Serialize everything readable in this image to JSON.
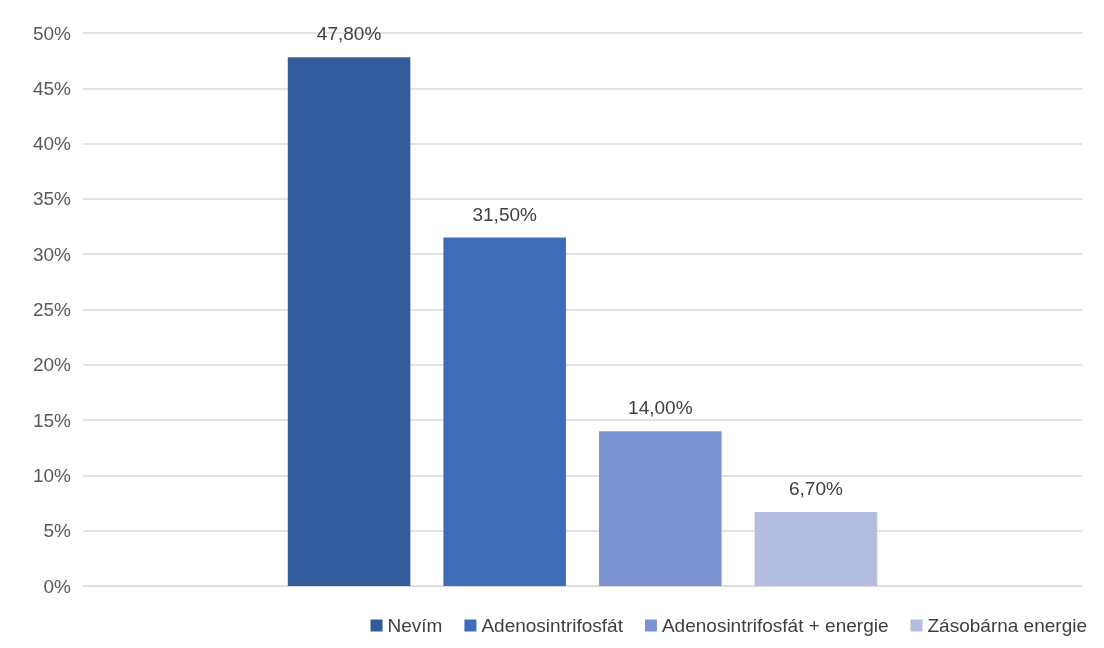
{
  "chart_data": {
    "type": "bar",
    "categories": [
      null
    ],
    "series": [
      {
        "name": "Nevím",
        "color": "#335a9a",
        "values": [
          47.8
        ],
        "value_labels": [
          "47,80%"
        ]
      },
      {
        "name": "Adenosintrifosfát",
        "color": "#3f6cb9",
        "values": [
          31.5
        ],
        "value_labels": [
          "31,50%"
        ]
      },
      {
        "name": "Adenosintrifosfát + energie",
        "color": "#7b93d0",
        "values": [
          14.0
        ],
        "value_labels": [
          "14,00%"
        ]
      },
      {
        "name": "Zásobárna energie",
        "color": "#b2bde0",
        "values": [
          6.7
        ],
        "value_labels": [
          "6,70%"
        ]
      }
    ],
    "ylim": [
      0,
      50
    ],
    "yticks": [
      {
        "value": 0,
        "label": "0%"
      },
      {
        "value": 5,
        "label": "5%"
      },
      {
        "value": 10,
        "label": "10%"
      },
      {
        "value": 15,
        "label": "15%"
      },
      {
        "value": 20,
        "label": "20%"
      },
      {
        "value": 25,
        "label": "25%"
      },
      {
        "value": 30,
        "label": "30%"
      },
      {
        "value": 35,
        "label": "35%"
      },
      {
        "value": 40,
        "label": "40%"
      },
      {
        "value": 45,
        "label": "45%"
      },
      {
        "value": 50,
        "label": "50%"
      }
    ],
    "grid": "y",
    "legend": "bottom"
  }
}
